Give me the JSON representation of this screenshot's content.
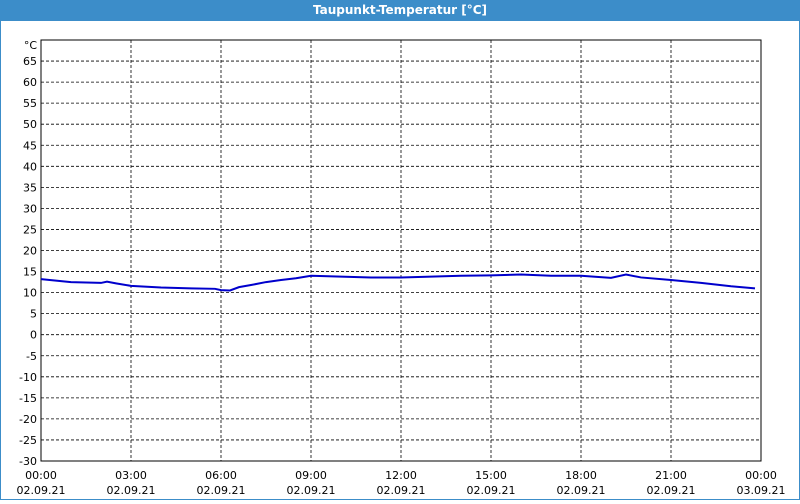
{
  "chart_data": {
    "type": "line",
    "title": "Taupunkt-Temperatur [°C]",
    "y_label": "°C",
    "x": [
      0,
      1,
      2,
      2.2,
      2.5,
      3,
      4,
      5,
      5.8,
      6,
      6.3,
      6.6,
      7,
      7.5,
      8,
      8.5,
      9,
      10,
      11,
      12,
      13,
      14,
      15,
      16,
      17,
      18,
      19,
      19.5,
      20,
      21,
      22,
      23,
      23.8
    ],
    "series": [
      {
        "color": "#0000cc",
        "values": [
          13.2,
          12.5,
          12.3,
          12.6,
          12.2,
          11.6,
          11.2,
          11.0,
          10.9,
          10.6,
          10.5,
          11.3,
          11.8,
          12.5,
          13.0,
          13.4,
          14.0,
          13.8,
          13.6,
          13.6,
          13.8,
          14.0,
          14.1,
          14.3,
          14.0,
          14.0,
          13.5,
          14.3,
          13.6,
          13.0,
          12.3,
          11.5,
          11.0
        ]
      }
    ],
    "xlim": [
      0,
      24
    ],
    "xticks": [
      {
        "value": 0,
        "label": [
          "00:00",
          "02.09.21"
        ]
      },
      {
        "value": 3,
        "label": [
          "03:00",
          "02.09.21"
        ]
      },
      {
        "value": 6,
        "label": [
          "06:00",
          "02.09.21"
        ]
      },
      {
        "value": 9,
        "label": [
          "09:00",
          "02.09.21"
        ]
      },
      {
        "value": 12,
        "label": [
          "12:00",
          "02.09.21"
        ]
      },
      {
        "value": 15,
        "label": [
          "15:00",
          "02.09.21"
        ]
      },
      {
        "value": 18,
        "label": [
          "18:00",
          "02.09.21"
        ]
      },
      {
        "value": 21,
        "label": [
          "21:00",
          "02.09.21"
        ]
      },
      {
        "value": 24,
        "label": [
          "00:00",
          "03.09.21"
        ]
      }
    ],
    "ylim": [
      -30,
      70
    ],
    "yticks": [
      -30,
      -25,
      -20,
      -15,
      -10,
      -5,
      0,
      5,
      10,
      15,
      20,
      25,
      30,
      35,
      40,
      45,
      50,
      55,
      60,
      65
    ],
    "grid": true
  }
}
